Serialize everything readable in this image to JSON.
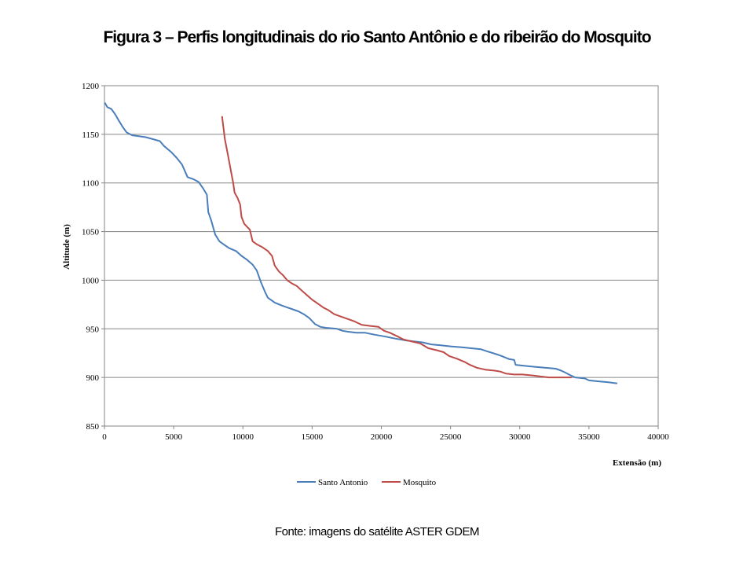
{
  "page": {
    "title": "Figura 3 – Perfis longitudinais do rio Santo Antônio e do ribeirão do Mosquito",
    "caption": "Fonte: imagens do satélite ASTER GDEM"
  },
  "chart_data": {
    "type": "line",
    "title": "",
    "xlabel": "Extensão (m)",
    "ylabel": "Altitude (m)",
    "xlim": [
      0,
      40000
    ],
    "ylim": [
      850,
      1200
    ],
    "xticks": [
      0,
      5000,
      10000,
      15000,
      20000,
      25000,
      30000,
      35000,
      40000
    ],
    "yticks": [
      850,
      900,
      950,
      1000,
      1050,
      1100,
      1150,
      1200
    ],
    "grid": "horizontal",
    "legend": "bottom",
    "series": [
      {
        "name": "Santo Antonio",
        "color": "#4a7ebb",
        "points": [
          [
            50,
            1182
          ],
          [
            200,
            1178
          ],
          [
            500,
            1176
          ],
          [
            800,
            1170
          ],
          [
            1000,
            1165
          ],
          [
            1300,
            1158
          ],
          [
            1600,
            1152
          ],
          [
            2000,
            1149
          ],
          [
            2500,
            1148
          ],
          [
            3000,
            1147
          ],
          [
            3500,
            1145
          ],
          [
            4000,
            1143
          ],
          [
            4300,
            1138
          ],
          [
            4800,
            1132
          ],
          [
            5200,
            1126
          ],
          [
            5600,
            1119
          ],
          [
            6000,
            1106
          ],
          [
            6400,
            1104
          ],
          [
            6800,
            1101
          ],
          [
            7100,
            1095
          ],
          [
            7400,
            1088
          ],
          [
            7500,
            1070
          ],
          [
            7700,
            1062
          ],
          [
            8000,
            1047
          ],
          [
            8300,
            1040
          ],
          [
            8700,
            1036
          ],
          [
            9000,
            1033
          ],
          [
            9500,
            1030
          ],
          [
            9900,
            1025
          ],
          [
            10300,
            1021
          ],
          [
            10700,
            1016
          ],
          [
            11000,
            1010
          ],
          [
            11300,
            998
          ],
          [
            11600,
            988
          ],
          [
            11800,
            982
          ],
          [
            12300,
            977
          ],
          [
            12800,
            974
          ],
          [
            13200,
            972
          ],
          [
            13600,
            970
          ],
          [
            14000,
            968
          ],
          [
            14400,
            965
          ],
          [
            14800,
            961
          ],
          [
            15200,
            955
          ],
          [
            15600,
            952
          ],
          [
            16000,
            951
          ],
          [
            16800,
            950
          ],
          [
            17200,
            948
          ],
          [
            17600,
            947
          ],
          [
            18200,
            946
          ],
          [
            18800,
            946
          ],
          [
            19500,
            944
          ],
          [
            20300,
            942
          ],
          [
            21000,
            940
          ],
          [
            21800,
            938
          ],
          [
            22400,
            937
          ],
          [
            23000,
            936
          ],
          [
            23600,
            934
          ],
          [
            24300,
            933
          ],
          [
            25000,
            932
          ],
          [
            25800,
            931
          ],
          [
            26500,
            930
          ],
          [
            27200,
            929
          ],
          [
            27600,
            927
          ],
          [
            28300,
            924
          ],
          [
            28700,
            922
          ],
          [
            29200,
            919
          ],
          [
            29600,
            918
          ],
          [
            29700,
            913
          ],
          [
            30300,
            912
          ],
          [
            31000,
            911
          ],
          [
            31800,
            910
          ],
          [
            32600,
            909
          ],
          [
            33000,
            907
          ],
          [
            33300,
            905
          ],
          [
            33700,
            902
          ],
          [
            34000,
            900
          ],
          [
            34700,
            899
          ],
          [
            35000,
            897
          ],
          [
            35700,
            896
          ],
          [
            36400,
            895
          ],
          [
            37000,
            894
          ]
        ]
      },
      {
        "name": "Mosquito",
        "color": "#be4b48",
        "points": [
          [
            8500,
            1168
          ],
          [
            8700,
            1145
          ],
          [
            8900,
            1130
          ],
          [
            9100,
            1115
          ],
          [
            9300,
            1100
          ],
          [
            9400,
            1090
          ],
          [
            9600,
            1085
          ],
          [
            9800,
            1078
          ],
          [
            9900,
            1065
          ],
          [
            10100,
            1058
          ],
          [
            10300,
            1055
          ],
          [
            10500,
            1052
          ],
          [
            10700,
            1040
          ],
          [
            11000,
            1037
          ],
          [
            11400,
            1034
          ],
          [
            11800,
            1030
          ],
          [
            12100,
            1025
          ],
          [
            12300,
            1015
          ],
          [
            12600,
            1009
          ],
          [
            12900,
            1005
          ],
          [
            13200,
            1000
          ],
          [
            13500,
            997
          ],
          [
            13900,
            994
          ],
          [
            14200,
            990
          ],
          [
            14600,
            985
          ],
          [
            15000,
            980
          ],
          [
            15400,
            976
          ],
          [
            15800,
            972
          ],
          [
            16200,
            969
          ],
          [
            16600,
            965
          ],
          [
            17000,
            963
          ],
          [
            17600,
            960
          ],
          [
            18000,
            958
          ],
          [
            18300,
            956
          ],
          [
            18600,
            954
          ],
          [
            19200,
            953
          ],
          [
            19800,
            952
          ],
          [
            20200,
            948
          ],
          [
            20600,
            946
          ],
          [
            21200,
            942
          ],
          [
            21600,
            939
          ],
          [
            22200,
            937
          ],
          [
            22800,
            935
          ],
          [
            23400,
            930
          ],
          [
            24000,
            928
          ],
          [
            24500,
            926
          ],
          [
            24900,
            922
          ],
          [
            25500,
            919
          ],
          [
            26000,
            916
          ],
          [
            26400,
            913
          ],
          [
            26900,
            910
          ],
          [
            27500,
            908
          ],
          [
            28200,
            907
          ],
          [
            28600,
            906
          ],
          [
            29000,
            904
          ],
          [
            29600,
            903
          ],
          [
            30200,
            903
          ],
          [
            31000,
            902
          ],
          [
            31500,
            901
          ],
          [
            32100,
            900
          ],
          [
            33000,
            900
          ],
          [
            33700,
            900
          ]
        ]
      }
    ]
  }
}
